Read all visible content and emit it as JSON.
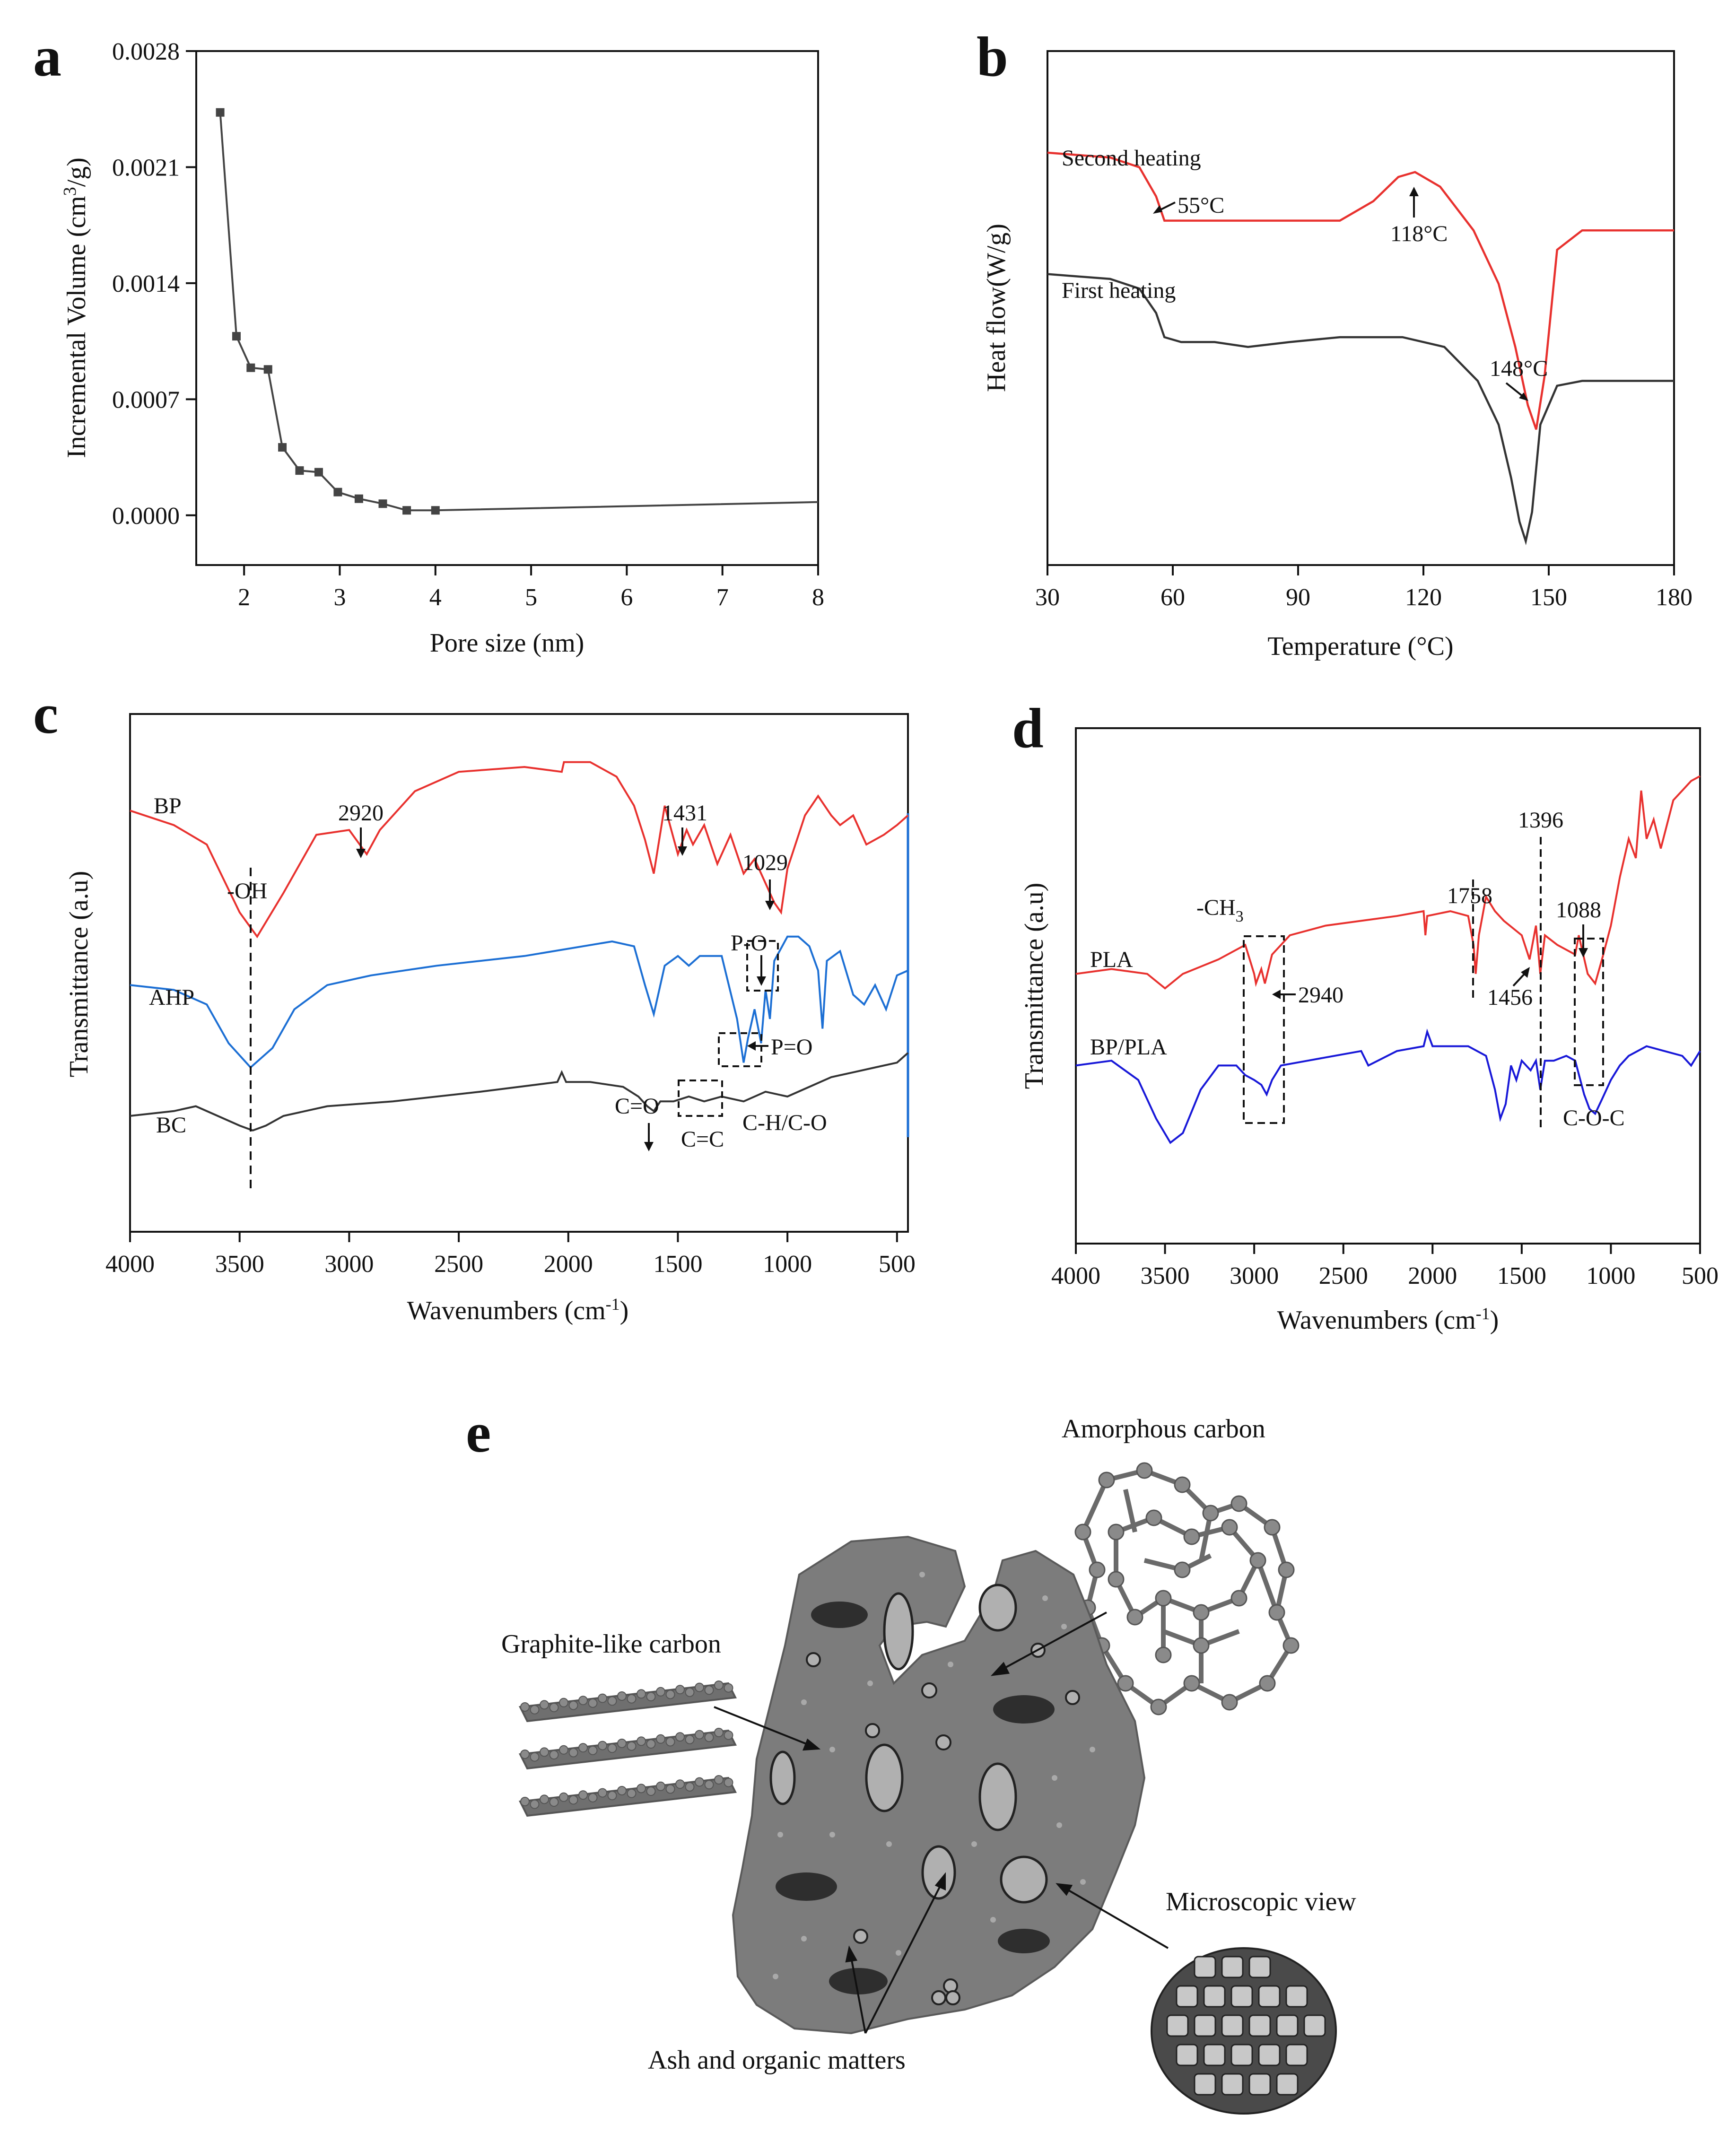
{
  "figure": {
    "panels": [
      "a",
      "b",
      "c",
      "d",
      "e"
    ]
  },
  "chart_data": [
    {
      "id": "a",
      "type": "line",
      "xlabel": "Pore size (nm)",
      "ylabel": "Incremental Volume (cm³/g)",
      "xlim": [
        1.5,
        8
      ],
      "ylim": [
        -0.0003,
        0.0028
      ],
      "xticks": [
        "2",
        "3",
        "4",
        "5",
        "6",
        "7",
        "8"
      ],
      "xtick_values": [
        2,
        3,
        4,
        5,
        6,
        7,
        8
      ],
      "yticks": [
        "0.0000",
        "0.0007",
        "0.0014",
        "0.0021",
        "0.0028"
      ],
      "ytick_values": [
        0,
        0.0007,
        0.0014,
        0.0021,
        0.0028
      ],
      "color": "#444444",
      "x": [
        1.75,
        1.92,
        2.07,
        2.25,
        2.4,
        2.58,
        2.78,
        2.98,
        3.2,
        3.45,
        3.7,
        4.0,
        8.0
      ],
      "y": [
        0.00243,
        0.00108,
        0.00089,
        0.00088,
        0.00041,
        0.00027,
        0.00026,
        0.00014,
        0.0001,
        7e-05,
        3e-05,
        3e-05,
        8e-05
      ],
      "marker_count": 12
    },
    {
      "id": "b",
      "type": "line",
      "xlabel": "Temperature (°C)",
      "ylabel": "Heat flow(W/g)",
      "xlim": [
        30,
        180
      ],
      "ylim": [
        0,
        1
      ],
      "xticks": [
        "30",
        "60",
        "90",
        "120",
        "150",
        "180"
      ],
      "xtick_values": [
        30,
        60,
        90,
        120,
        150,
        180
      ],
      "series": [
        {
          "name": "Second heating",
          "color": "#e8312e",
          "x": [
            30,
            45,
            52,
            56,
            58,
            62,
            80,
            100,
            108,
            114,
            118,
            124,
            132,
            138,
            142,
            145,
            147,
            149,
            152,
            158,
            180
          ],
          "y": [
            0.82,
            0.81,
            0.79,
            0.73,
            0.68,
            0.68,
            0.68,
            0.68,
            0.72,
            0.77,
            0.78,
            0.75,
            0.66,
            0.55,
            0.42,
            0.3,
            0.25,
            0.36,
            0.62,
            0.66,
            0.66
          ]
        },
        {
          "name": "First heating",
          "color": "#333333",
          "x": [
            30,
            45,
            52,
            56,
            58,
            62,
            70,
            78,
            88,
            100,
            115,
            125,
            133,
            138,
            141,
            143,
            144.5,
            146,
            148,
            152,
            158,
            180
          ],
          "y": [
            0.57,
            0.56,
            0.54,
            0.49,
            0.44,
            0.43,
            0.43,
            0.42,
            0.43,
            0.44,
            0.44,
            0.42,
            0.35,
            0.26,
            0.15,
            0.06,
            0.02,
            0.08,
            0.26,
            0.34,
            0.35,
            0.35
          ]
        }
      ],
      "annotations": [
        {
          "text": "55°C",
          "x": 56,
          "y": 0.68
        },
        {
          "text": "118°C",
          "x": 118,
          "y": 0.78
        },
        {
          "text": "148°C",
          "x": 147,
          "y": 0.25
        }
      ]
    },
    {
      "id": "c",
      "type": "line",
      "xlabel": "Wavenumbers (cm⁻¹)",
      "xlabel_base": "Wavenumbers (cm",
      "xlabel_sup": "-1",
      "ylabel": "Transmittance (a.u)",
      "xlim": [
        4000,
        450
      ],
      "ylim": [
        0,
        1
      ],
      "xticks": [
        "4000",
        "3500",
        "3000",
        "2500",
        "2000",
        "1500",
        "1000",
        "500"
      ],
      "xtick_values": [
        4000,
        3500,
        3000,
        2500,
        2000,
        1500,
        1000,
        500
      ],
      "series": [
        {
          "name": "BP",
          "color": "#e8312e",
          "x": [
            4000,
            3800,
            3650,
            3500,
            3420,
            3300,
            3150,
            3000,
            2920,
            2860,
            2700,
            2500,
            2200,
            2030,
            2020,
            1900,
            1780,
            1700,
            1650,
            1610,
            1560,
            1500,
            1460,
            1431,
            1380,
            1320,
            1260,
            1200,
            1150,
            1100,
            1060,
            1029,
            1000,
            920,
            860,
            800,
            760,
            700,
            640,
            560,
            500,
            450
          ],
          "y": [
            0.83,
            0.8,
            0.76,
            0.62,
            0.57,
            0.66,
            0.78,
            0.79,
            0.74,
            0.79,
            0.87,
            0.91,
            0.92,
            0.91,
            0.93,
            0.93,
            0.9,
            0.84,
            0.77,
            0.7,
            0.84,
            0.74,
            0.79,
            0.76,
            0.8,
            0.72,
            0.78,
            0.7,
            0.73,
            0.68,
            0.64,
            0.62,
            0.71,
            0.82,
            0.86,
            0.82,
            0.8,
            0.82,
            0.76,
            0.78,
            0.8,
            0.82
          ]
        },
        {
          "name": "AHP",
          "color": "#1c6fd4",
          "x": [
            4000,
            3800,
            3650,
            3550,
            3450,
            3350,
            3250,
            3100,
            2900,
            2600,
            2200,
            1800,
            1700,
            1650,
            1610,
            1560,
            1500,
            1450,
            1400,
            1300,
            1230,
            1200,
            1180,
            1150,
            1120,
            1100,
            1080,
            1060,
            1000,
            950,
            900,
            860,
            840,
            820,
            760,
            700,
            650,
            600,
            550,
            500,
            450
          ],
          "y": [
            0.47,
            0.46,
            0.43,
            0.35,
            0.3,
            0.34,
            0.42,
            0.47,
            0.49,
            0.51,
            0.53,
            0.56,
            0.55,
            0.47,
            0.41,
            0.51,
            0.53,
            0.51,
            0.53,
            0.53,
            0.4,
            0.31,
            0.36,
            0.42,
            0.35,
            0.46,
            0.4,
            0.52,
            0.57,
            0.57,
            0.55,
            0.5,
            0.38,
            0.52,
            0.54,
            0.45,
            0.43,
            0.47,
            0.42,
            0.49,
            0.5
          ]
        },
        {
          "name": "BC",
          "color": "#333333",
          "x": [
            4000,
            3800,
            3700,
            3600,
            3500,
            3440,
            3380,
            3300,
            3100,
            2800,
            2400,
            2050,
            2030,
            2010,
            1900,
            1750,
            1680,
            1640,
            1610,
            1580,
            1520,
            1450,
            1380,
            1300,
            1200,
            1100,
            1000,
            900,
            800,
            700,
            600,
            500,
            450
          ],
          "y": [
            0.2,
            0.21,
            0.22,
            0.2,
            0.18,
            0.17,
            0.18,
            0.2,
            0.22,
            0.23,
            0.25,
            0.27,
            0.29,
            0.27,
            0.27,
            0.26,
            0.24,
            0.22,
            0.21,
            0.23,
            0.23,
            0.24,
            0.23,
            0.24,
            0.23,
            0.25,
            0.24,
            0.26,
            0.28,
            0.29,
            0.3,
            0.31,
            0.33
          ]
        }
      ],
      "annotations": [
        {
          "text": "-OH",
          "x": 3440,
          "y": 0.57
        },
        {
          "text": "2920",
          "x": 2920,
          "y": 0.74
        },
        {
          "text": "1431",
          "x": 1431,
          "y": 0.76
        },
        {
          "text": "1029",
          "x": 1029,
          "y": 0.62
        },
        {
          "text": "P-O",
          "x": 1080,
          "y": 0.4
        },
        {
          "text": "P=O",
          "x": 1180,
          "y": 0.36
        },
        {
          "text": "C=O",
          "x": 1610,
          "y": 0.21
        },
        {
          "text": "C=C",
          "x": 1380,
          "y": 0.23
        },
        {
          "text": "C-H/C-O",
          "x": 1000,
          "y": 0.24
        }
      ]
    },
    {
      "id": "d",
      "type": "line",
      "xlabel": "Wavenumbers (cm⁻¹)",
      "xlabel_base": "Wavenumbers (cm",
      "xlabel_sup": "-1",
      "ylabel": "Transmittance (a.u)",
      "xlim": [
        4000,
        500
      ],
      "ylim": [
        0,
        1
      ],
      "xticks": [
        "4000",
        "3500",
        "3000",
        "2500",
        "2000",
        "1500",
        "1000",
        "500"
      ],
      "xtick_values": [
        4000,
        3500,
        3000,
        2500,
        2000,
        1500,
        1000,
        500
      ],
      "series": [
        {
          "name": "PLA",
          "color": "#e8312e",
          "x": [
            4000,
            3800,
            3600,
            3500,
            3400,
            3200,
            3050,
            3000,
            2990,
            2960,
            2940,
            2900,
            2800,
            2600,
            2400,
            2200,
            2050,
            2040,
            2030,
            1900,
            1800,
            1770,
            1758,
            1740,
            1700,
            1650,
            1600,
            1500,
            1456,
            1420,
            1396,
            1370,
            1300,
            1200,
            1180,
            1130,
            1088,
            1050,
            1000,
            950,
            900,
            860,
            830,
            800,
            760,
            720,
            650,
            600,
            550,
            500
          ],
          "y": [
            0.52,
            0.53,
            0.52,
            0.49,
            0.52,
            0.55,
            0.58,
            0.52,
            0.5,
            0.53,
            0.5,
            0.56,
            0.6,
            0.62,
            0.63,
            0.64,
            0.65,
            0.6,
            0.64,
            0.65,
            0.64,
            0.58,
            0.52,
            0.6,
            0.68,
            0.65,
            0.63,
            0.6,
            0.55,
            0.62,
            0.52,
            0.6,
            0.58,
            0.56,
            0.6,
            0.52,
            0.5,
            0.55,
            0.62,
            0.72,
            0.8,
            0.76,
            0.9,
            0.8,
            0.84,
            0.78,
            0.88,
            0.9,
            0.92,
            0.93
          ]
        },
        {
          "name": "BP/PLA",
          "color": "#1818d8",
          "x": [
            4000,
            3800,
            3650,
            3550,
            3470,
            3400,
            3300,
            3200,
            3100,
            3050,
            3000,
            2960,
            2930,
            2900,
            2850,
            2700,
            2400,
            2360,
            2200,
            2050,
            2030,
            2000,
            1900,
            1800,
            1700,
            1650,
            1620,
            1590,
            1560,
            1530,
            1500,
            1450,
            1420,
            1396,
            1370,
            1320,
            1250,
            1200,
            1150,
            1120,
            1088,
            1050,
            1000,
            950,
            900,
            800,
            700,
            600,
            550,
            500
          ],
          "y": [
            0.33,
            0.34,
            0.3,
            0.22,
            0.17,
            0.19,
            0.28,
            0.33,
            0.33,
            0.31,
            0.3,
            0.29,
            0.27,
            0.3,
            0.33,
            0.34,
            0.36,
            0.33,
            0.36,
            0.37,
            0.4,
            0.37,
            0.37,
            0.37,
            0.35,
            0.28,
            0.22,
            0.25,
            0.33,
            0.3,
            0.34,
            0.32,
            0.34,
            0.28,
            0.34,
            0.34,
            0.35,
            0.34,
            0.27,
            0.24,
            0.23,
            0.26,
            0.3,
            0.33,
            0.35,
            0.37,
            0.36,
            0.35,
            0.33,
            0.36
          ]
        }
      ],
      "annotations": [
        {
          "text": "-CH",
          "x": 3000,
          "y": 0.52
        },
        {
          "text": "2940",
          "x": 2940,
          "y": 0.5
        },
        {
          "text": "1758",
          "x": 1758,
          "y": 0.52
        },
        {
          "text": "1396",
          "x": 1396,
          "y": 0.52
        },
        {
          "text": "1456",
          "x": 1456,
          "y": 0.55
        },
        {
          "text": "1088",
          "x": 1088,
          "y": 0.5
        },
        {
          "text": "C-O-C",
          "x": 1088,
          "y": 0.23
        }
      ]
    }
  ],
  "labels": {
    "b_second": "Second heating",
    "b_first": "First heating",
    "c_bp": "BP",
    "c_ahp": "AHP",
    "c_bc": "BC",
    "d_pla": "PLA",
    "d_bppla": "BP/PLA",
    "ch3_sub": "3",
    "a_ylabel_base": "Incremental Volume (cm",
    "a_ylabel_sup": "3",
    "a_ylabel_end": "/g)"
  },
  "schematic": {
    "title": "e",
    "labels": {
      "amorphous": "Amorphous carbon",
      "graphite": "Graphite-like carbon",
      "microscopic": "Microscopic view",
      "ash": "Ash and organic matters"
    },
    "colors": {
      "body": "#7c7c7c",
      "body_dark": "#5a5a5a",
      "pore": "#b0b0b0",
      "flake": "#2e2e2e",
      "dot": "#a9a9a9",
      "stack": "#6f6f6f"
    }
  }
}
